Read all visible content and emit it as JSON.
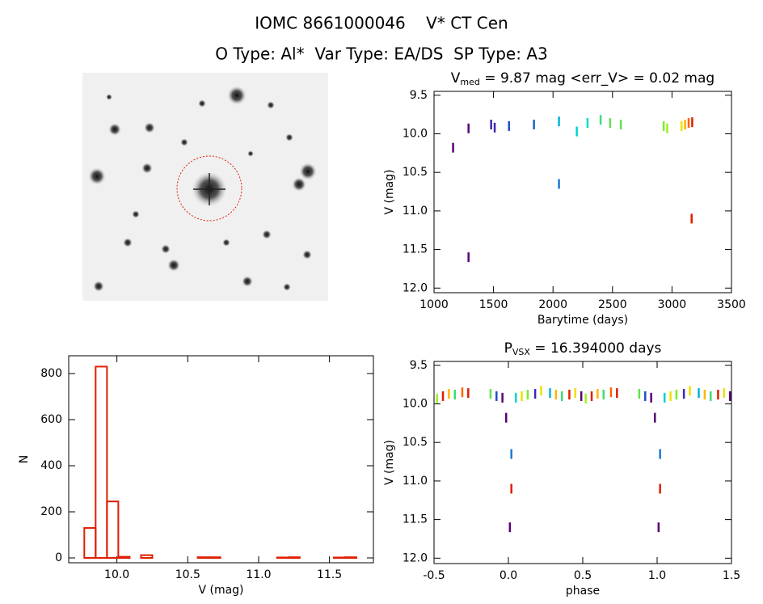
{
  "header": {
    "title": "IOMC 8661000046    V* CT Cen",
    "subtitle": "O Type: Al*  Var Type: EA/DS  SP Type: A3"
  },
  "chart_data": [
    {
      "type": "scatter",
      "title": [
        "V",
        "med",
        " = 9.87 mag <err_V> = 0.02 mag"
      ],
      "x_label": "Barytime (days)",
      "y_label": "V (mag)",
      "xlim": [
        1000,
        3500
      ],
      "xticks": [
        1000,
        1500,
        2000,
        2500,
        3000,
        3500
      ],
      "ylim": [
        9.45,
        12.06
      ],
      "y_inverted": true,
      "yticks": [
        9.5,
        {
          "value": 10,
          "label": "10.0"
        },
        10.5,
        {
          "value": 11,
          "label": "11.0"
        },
        11.5,
        {
          "value": 12,
          "label": "12.0"
        }
      ],
      "x": [
        1160,
        1290,
        1290,
        1480,
        1510,
        1630,
        1840,
        2050,
        2050,
        2200,
        2290,
        2400,
        2480,
        2570,
        2930,
        2960,
        3080,
        3110,
        3140,
        3170,
        3165
      ],
      "values": [
        10.18,
        9.93,
        11.6,
        9.88,
        9.92,
        9.9,
        9.88,
        9.84,
        10.65,
        9.97,
        9.86,
        9.82,
        9.86,
        9.88,
        9.9,
        9.93,
        9.9,
        9.88,
        9.86,
        9.85,
        11.1
      ],
      "colors": [
        "#5a0078",
        "#5a0078",
        "#5a0078",
        "#3c28b4",
        "#3c28b4",
        "#1e50c8",
        "#1e64c8",
        "#00b4dc",
        "#1e78d2",
        "#00d2d2",
        "#00dcc8",
        "#3cdc78",
        "#64e050",
        "#64e050",
        "#78f028",
        "#a0f020",
        "#f0e000",
        "#ffb400",
        "#ff6400",
        "#e01e00",
        "#e01e00"
      ]
    },
    {
      "type": "histogram",
      "x_label": "V (mag)",
      "y_label": "N",
      "color": "#e01e00",
      "xlim": [
        9.66,
        11.81
      ],
      "xticks": [
        {
          "value": 10,
          "label": "10.0"
        },
        10.5,
        {
          "value": 11,
          "label": "11.0"
        },
        11.5
      ],
      "ylim": [
        -21,
        877
      ],
      "yticks": [
        0,
        200,
        400,
        600,
        800
      ],
      "bins": [
        9.77,
        9.85,
        9.93,
        10.01,
        10.09,
        10.17,
        10.25,
        10.33,
        10.41,
        10.49,
        10.57,
        10.65,
        10.73,
        10.81,
        10.89,
        10.97,
        11.05,
        11.13,
        11.21,
        11.29,
        11.37,
        11.45,
        11.53,
        11.61,
        11.69
      ],
      "values": [
        130,
        830,
        245,
        5,
        0,
        12,
        0,
        0,
        0,
        0,
        3,
        3,
        0,
        0,
        0,
        0,
        0,
        2,
        3,
        0,
        0,
        0,
        2,
        3
      ]
    },
    {
      "type": "scatter",
      "title": [
        "P",
        "VSX",
        " = 16.394000 days"
      ],
      "x_label": "phase",
      "y_label": "V (mag)",
      "xlim": [
        -0.5,
        1.5
      ],
      "xticks": [
        -0.5,
        {
          "value": 0,
          "label": "0.0"
        },
        0.5,
        {
          "value": 1,
          "label": "1.0"
        },
        1.5
      ],
      "ylim": [
        9.45,
        12.07
      ],
      "y_inverted": true,
      "yticks": [
        9.5,
        {
          "value": 10,
          "label": "10.0"
        },
        10.5,
        {
          "value": 11,
          "label": "11.0"
        },
        11.5,
        {
          "value": 12,
          "label": "12.0"
        }
      ],
      "x": [
        -0.48,
        -0.44,
        -0.4,
        -0.36,
        -0.31,
        -0.27,
        -0.12,
        -0.08,
        -0.04,
        0.05,
        0.09,
        0.13,
        0.18,
        0.22,
        0.28,
        0.32,
        0.36,
        0.41,
        0.45,
        0.49,
        -0.015,
        0.02,
        0.02,
        0.01,
        0.52,
        0.56,
        0.6,
        0.64,
        0.69,
        0.73,
        0.88,
        0.92,
        0.96,
        1.05,
        1.09,
        1.13,
        1.18,
        1.22,
        1.28,
        1.32,
        1.36,
        1.41,
        1.45,
        1.49,
        0.985,
        1.02,
        1.02,
        1.01
      ],
      "values": [
        9.93,
        9.9,
        9.87,
        9.88,
        9.85,
        9.86,
        9.87,
        9.9,
        9.92,
        9.92,
        9.9,
        9.88,
        9.87,
        9.83,
        9.86,
        9.88,
        9.9,
        9.88,
        9.86,
        9.9,
        10.18,
        10.65,
        11.1,
        11.6,
        9.93,
        9.9,
        9.87,
        9.88,
        9.85,
        9.86,
        9.87,
        9.9,
        9.92,
        9.92,
        9.9,
        9.88,
        9.87,
        9.83,
        9.86,
        9.88,
        9.9,
        9.88,
        9.86,
        9.9,
        10.18,
        10.65,
        11.1,
        11.6
      ],
      "colors": [
        "#a0f020",
        "#e01e00",
        "#ffb400",
        "#3cdc78",
        "#ff6400",
        "#e01e00",
        "#64e050",
        "#1e50c8",
        "#5a0078",
        "#00d2d2",
        "#f0e000",
        "#78f028",
        "#3c28b4",
        "#f0e000",
        "#00b4dc",
        "#ffb400",
        "#3cdc78",
        "#e01e00",
        "#f0e000",
        "#5a0078",
        "#5a0078",
        "#1e78d2",
        "#e01e00",
        "#5a0078",
        "#a0f020",
        "#e01e00",
        "#ffb400",
        "#3cdc78",
        "#ff6400",
        "#e01e00",
        "#64e050",
        "#1e50c8",
        "#5a0078",
        "#00d2d2",
        "#f0e000",
        "#78f028",
        "#3c28b4",
        "#f0e000",
        "#00b4dc",
        "#ffb400",
        "#3cdc78",
        "#e01e00",
        "#f0e000",
        "#5a0078",
        "#5a0078",
        "#1e78d2",
        "#e01e00",
        "#5a0078"
      ]
    }
  ]
}
